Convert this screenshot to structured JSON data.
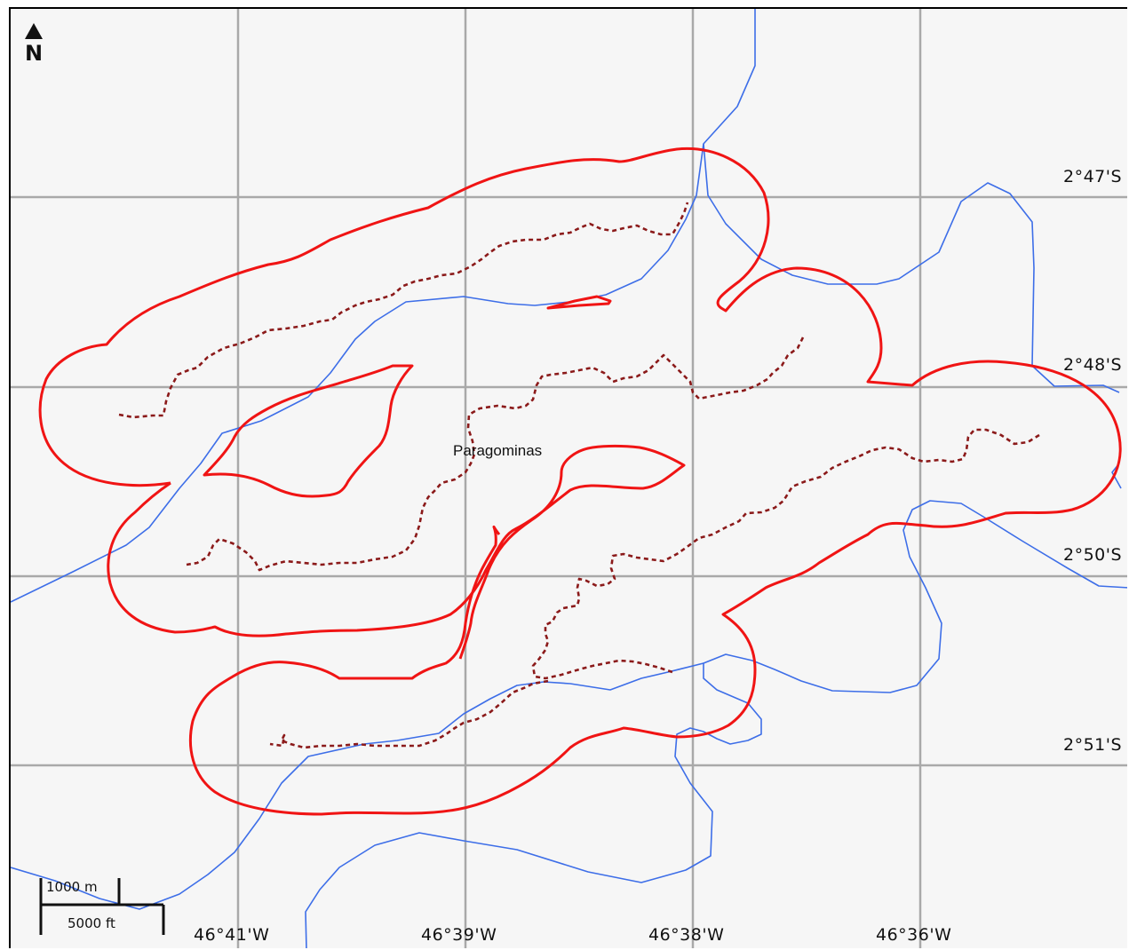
{
  "map": {
    "place_name": "Paragominas",
    "north_label": "N",
    "colors": {
      "background": "#f6f6f6",
      "grid": "#a9a9a9",
      "river": "#3d6ee8",
      "boundary": "#f01414",
      "track": "#8b1a1a"
    },
    "longitude_labels": [
      "46°41'W",
      "46°39'W",
      "46°38'W",
      "46°36'W"
    ],
    "latitude_labels": [
      "2°47'S",
      "2°48'S",
      "2°50'S",
      "2°51'S"
    ],
    "scale_bar": {
      "metric_label": "1000 m",
      "imperial_label": "5000 ft"
    },
    "icons": [
      "north-arrow-icon"
    ]
  }
}
